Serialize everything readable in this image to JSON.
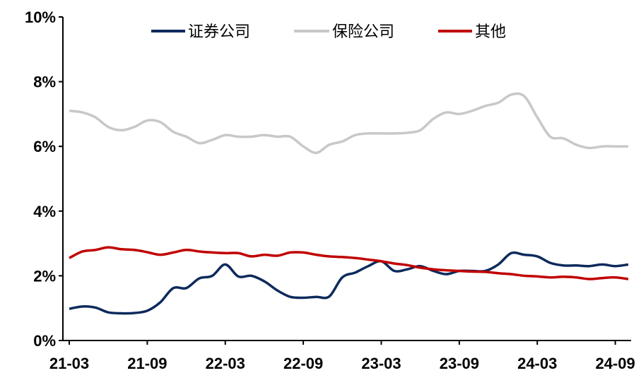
{
  "chart_data": {
    "type": "line",
    "title": "",
    "xlabel": "",
    "ylabel": "",
    "ylim": [
      0,
      10
    ],
    "grid": false,
    "legend_position": "top",
    "y_ticks": [
      "0%",
      "2%",
      "4%",
      "6%",
      "8%",
      "10%"
    ],
    "x_ticks": [
      "21-03",
      "21-09",
      "22-03",
      "22-09",
      "23-03",
      "23-09",
      "24-03",
      "24-09"
    ],
    "x": [
      "21-03",
      "21-04",
      "21-05",
      "21-06",
      "21-07",
      "21-08",
      "21-09",
      "21-10",
      "21-11",
      "21-12",
      "22-01",
      "22-02",
      "22-03",
      "22-04",
      "22-05",
      "22-06",
      "22-07",
      "22-08",
      "22-09",
      "22-10",
      "22-11",
      "22-12",
      "23-01",
      "23-02",
      "23-03",
      "23-04",
      "23-05",
      "23-06",
      "23-07",
      "23-08",
      "23-09",
      "23-10",
      "23-11",
      "23-12",
      "24-01",
      "24-02",
      "24-03",
      "24-04",
      "24-05",
      "24-06",
      "24-07",
      "24-08",
      "24-09",
      "24-10"
    ],
    "series": [
      {
        "name": "证券公司",
        "color": "#0d2a5c",
        "values": [
          0.98,
          1.05,
          1.02,
          0.87,
          0.84,
          0.85,
          0.92,
          1.18,
          1.62,
          1.62,
          1.92,
          2.0,
          2.35,
          1.98,
          2.0,
          1.83,
          1.55,
          1.35,
          1.32,
          1.35,
          1.36,
          1.95,
          2.1,
          2.3,
          2.45,
          2.15,
          2.2,
          2.3,
          2.15,
          2.05,
          2.15,
          2.15,
          2.15,
          2.35,
          2.7,
          2.65,
          2.6,
          2.4,
          2.32,
          2.32,
          2.3,
          2.35,
          2.3,
          2.35
        ]
      },
      {
        "name": "保险公司",
        "color": "#c8c8c8",
        "values": [
          7.1,
          7.05,
          6.9,
          6.6,
          6.5,
          6.6,
          6.8,
          6.75,
          6.45,
          6.3,
          6.1,
          6.2,
          6.35,
          6.3,
          6.3,
          6.35,
          6.3,
          6.3,
          6.0,
          5.8,
          6.05,
          6.15,
          6.35,
          6.4,
          6.4,
          6.4,
          6.42,
          6.5,
          6.85,
          7.05,
          7.0,
          7.1,
          7.25,
          7.35,
          7.6,
          7.55,
          6.9,
          6.3,
          6.25,
          6.05,
          5.95,
          6.0,
          6.0,
          6.0
        ]
      },
      {
        "name": "其他",
        "color": "#c00000",
        "values": [
          2.55,
          2.75,
          2.8,
          2.88,
          2.82,
          2.8,
          2.73,
          2.65,
          2.72,
          2.8,
          2.75,
          2.72,
          2.7,
          2.7,
          2.6,
          2.65,
          2.62,
          2.72,
          2.72,
          2.65,
          2.6,
          2.58,
          2.55,
          2.5,
          2.45,
          2.38,
          2.33,
          2.25,
          2.2,
          2.17,
          2.15,
          2.13,
          2.12,
          2.08,
          2.05,
          2.0,
          1.98,
          1.95,
          1.97,
          1.95,
          1.9,
          1.93,
          1.95,
          1.9
        ]
      }
    ]
  }
}
